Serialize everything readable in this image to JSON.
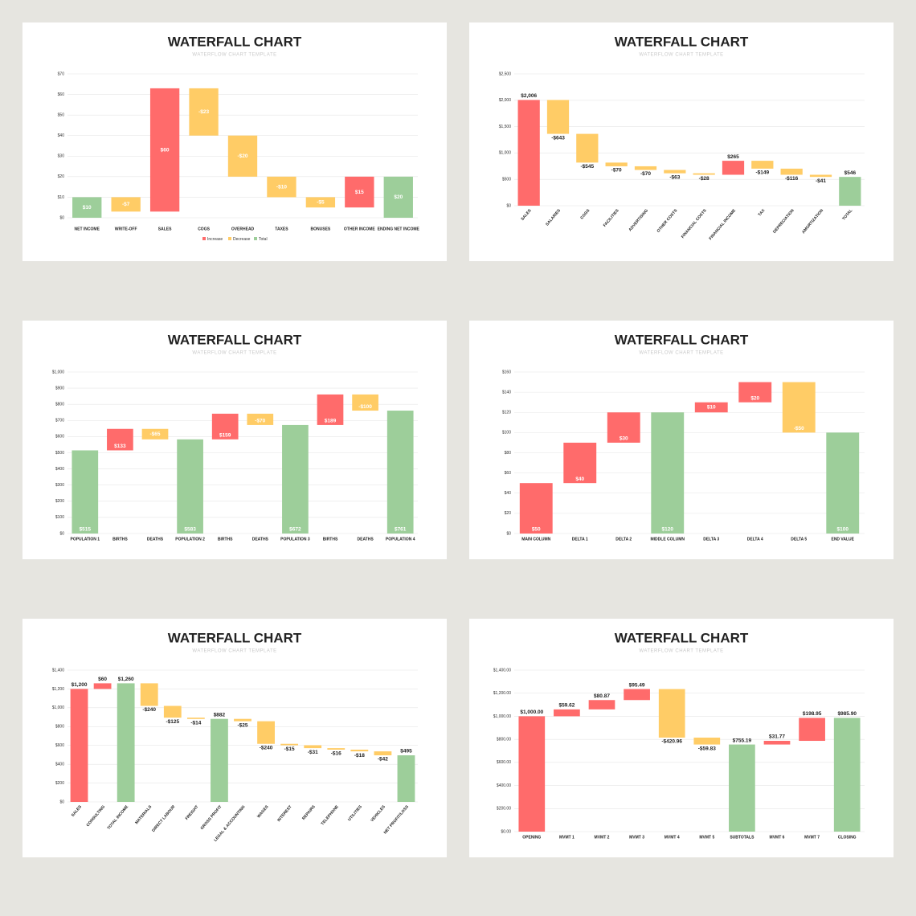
{
  "chart_data": [
    {
      "type": "waterfall",
      "title": "WATERFALL CHART",
      "subtitle": "WATERFLOW CHART TEMPLATE",
      "categories": [
        "NET INCOME",
        "WRITE-OFF",
        "SALES",
        "COGS",
        "OVERHEAD",
        "TAXES",
        "BONUSES",
        "OTHER INCOME",
        "ENDING NET INCOME"
      ],
      "values": [
        10,
        -7,
        60,
        -23,
        -20,
        -10,
        -5,
        15,
        20
      ],
      "value_labels": [
        "$10",
        "-$7",
        "$60",
        "-$23",
        "-$20",
        "-$10",
        "-$5",
        "$15",
        "$20"
      ],
      "kinds": [
        "total",
        "decrease",
        "increase",
        "decrease",
        "decrease",
        "decrease",
        "decrease",
        "increase",
        "total"
      ],
      "colors": {
        "increase": "#ff6b6b",
        "decrease": "#ffcc66",
        "total": "#9dce9a"
      },
      "label_position": "center",
      "rotate_labels": false,
      "legend": [
        {
          "kind": "increase",
          "name": "Increase"
        },
        {
          "kind": "decrease",
          "name": "Decrease"
        },
        {
          "kind": "total",
          "name": "Total"
        }
      ],
      "ylim": [
        0,
        70
      ],
      "yticks": [
        {
          "value": 0,
          "label": "$0"
        },
        {
          "value": 10,
          "label": "$10"
        },
        {
          "value": 20,
          "label": "$20"
        },
        {
          "value": 30,
          "label": "$30"
        },
        {
          "value": 40,
          "label": "$40"
        },
        {
          "value": 50,
          "label": "$50"
        },
        {
          "value": 60,
          "label": "$60"
        },
        {
          "value": 70,
          "label": "$70"
        }
      ],
      "grid": true
    },
    {
      "type": "waterfall",
      "title": "WATERFALL CHART",
      "subtitle": "WATERFLOW CHART TEMPLATE",
      "categories": [
        "SALES",
        "SALARIES",
        "COGS",
        "FACILITIES",
        "ADVERTISING",
        "OTHER COSTS",
        "FINANCIAL COSTS",
        "FINANCIAL INCOME",
        "TAX",
        "DEPRECIATION",
        "AMORTIZATION",
        "TOTAL"
      ],
      "values": [
        2006,
        -643,
        -545,
        -70,
        -70,
        -63,
        -28,
        265,
        -149,
        -116,
        -41,
        546
      ],
      "value_labels": [
        "$2,006",
        "-$643",
        "-$545",
        "-$70",
        "-$70",
        "-$63",
        "-$28",
        "$265",
        "-$149",
        "-$116",
        "-$41",
        "$546"
      ],
      "kinds": [
        "increase",
        "decrease",
        "decrease",
        "decrease",
        "decrease",
        "decrease",
        "decrease",
        "increase",
        "decrease",
        "decrease",
        "decrease",
        "total"
      ],
      "colors": {
        "increase": "#ff6b6b",
        "decrease": "#ffcc66",
        "total": "#9dce9a"
      },
      "label_position": "outside",
      "rotate_labels": true,
      "ylim": [
        0,
        2500
      ],
      "yticks": [
        {
          "value": 0,
          "label": "$0"
        },
        {
          "value": 500,
          "label": "$500"
        },
        {
          "value": 1000,
          "label": "$1,000"
        },
        {
          "value": 1500,
          "label": "$1,500"
        },
        {
          "value": 2000,
          "label": "$2,000"
        },
        {
          "value": 2500,
          "label": "$2,500"
        }
      ],
      "grid": true
    },
    {
      "type": "waterfall",
      "title": "WATERFALL CHART",
      "subtitle": "WATERFLOW CHART TEMPLATE",
      "categories": [
        "POPULATION 1",
        "BIRTHS",
        "DEATHS",
        "POPULATION 2",
        "BIRTHS",
        "DEATHS",
        "POPULATION 3",
        "BIRTHS",
        "DEATHS",
        "POPULATION 4"
      ],
      "values": [
        515,
        133,
        -65,
        583,
        159,
        -70,
        672,
        189,
        -100,
        761
      ],
      "value_labels": [
        "$515",
        "$133",
        "-$65",
        "$583",
        "$159",
        "-$70",
        "$672",
        "$189",
        "-$100",
        "$761"
      ],
      "kinds": [
        "total",
        "increase",
        "decrease",
        "total",
        "increase",
        "decrease",
        "total",
        "increase",
        "decrease",
        "total"
      ],
      "colors": {
        "increase": "#ff6b6b",
        "decrease": "#ffcc66",
        "total": "#9dce9a"
      },
      "label_position": "base",
      "rotate_labels": false,
      "ylim": [
        0,
        1000
      ],
      "yticks": [
        {
          "value": 0,
          "label": "$0"
        },
        {
          "value": 100,
          "label": "$100"
        },
        {
          "value": 200,
          "label": "$200"
        },
        {
          "value": 300,
          "label": "$300"
        },
        {
          "value": 400,
          "label": "$400"
        },
        {
          "value": 500,
          "label": "$500"
        },
        {
          "value": 600,
          "label": "$600"
        },
        {
          "value": 700,
          "label": "$700"
        },
        {
          "value": 800,
          "label": "$800"
        },
        {
          "value": 900,
          "label": "$900"
        },
        {
          "value": 1000,
          "label": "$1,000"
        }
      ],
      "grid": true
    },
    {
      "type": "waterfall",
      "title": "WATERFALL CHART",
      "subtitle": "WATERFLOW CHART TEMPLATE",
      "categories": [
        "MAIN COLUMN",
        "DELTA 1",
        "DELTA 2",
        "MIDDLE COLUMN",
        "DELTA 3",
        "DELTA 4",
        "DELTA 5",
        "END VALUE"
      ],
      "values": [
        50,
        40,
        30,
        120,
        10,
        20,
        -50,
        100
      ],
      "value_labels": [
        "$50",
        "$40",
        "$30",
        "$120",
        "$10",
        "$20",
        "-$50",
        "$100"
      ],
      "kinds": [
        "increase",
        "increase",
        "increase",
        "total",
        "increase",
        "increase",
        "decrease",
        "total"
      ],
      "colors": {
        "increase": "#ff6b6b",
        "decrease": "#ffcc66",
        "total": "#9dce9a"
      },
      "label_position": "base",
      "rotate_labels": false,
      "ylim": [
        0,
        160
      ],
      "yticks": [
        {
          "value": 0,
          "label": "$0"
        },
        {
          "value": 20,
          "label": "$20"
        },
        {
          "value": 40,
          "label": "$40"
        },
        {
          "value": 60,
          "label": "$60"
        },
        {
          "value": 80,
          "label": "$80"
        },
        {
          "value": 100,
          "label": "$100"
        },
        {
          "value": 120,
          "label": "$120"
        },
        {
          "value": 140,
          "label": "$140"
        },
        {
          "value": 160,
          "label": "$160"
        }
      ],
      "grid": true
    },
    {
      "type": "waterfall",
      "title": "WATERFALL CHART",
      "subtitle": "WATERFLOW CHART TEMPLATE",
      "categories": [
        "SALES",
        "CONSULTING",
        "TOTAL INCOME",
        "MATERIALS",
        "DIRECT LABOUR",
        "FREIGHT",
        "GROSS PROFIT",
        "LEGAL & ACCOUNTING",
        "WAGES",
        "INTEREST",
        "REPAIRS",
        "TELEPHONE",
        "UTILITIES",
        "VEHICLES",
        "NET PROFIT/LOSS"
      ],
      "values": [
        1200,
        60,
        1260,
        -240,
        -125,
        -14,
        882,
        -25,
        -240,
        -15,
        -31,
        -16,
        -18,
        -42,
        495
      ],
      "value_labels": [
        "$1,200",
        "$60",
        "$1,260",
        "-$240",
        "-$125",
        "-$14",
        "$882",
        "-$25",
        "-$240",
        "-$15",
        "-$31",
        "-$16",
        "-$18",
        "-$42",
        "$495"
      ],
      "kinds": [
        "increase",
        "increase",
        "total",
        "decrease",
        "decrease",
        "decrease",
        "total",
        "decrease",
        "decrease",
        "decrease",
        "decrease",
        "decrease",
        "decrease",
        "decrease",
        "total"
      ],
      "colors": {
        "increase": "#ff6b6b",
        "decrease": "#ffcc66",
        "total": "#9dce9a"
      },
      "label_position": "outside",
      "rotate_labels": true,
      "ylim": [
        0,
        1400
      ],
      "yticks": [
        {
          "value": 0,
          "label": "$0"
        },
        {
          "value": 200,
          "label": "$200"
        },
        {
          "value": 400,
          "label": "$400"
        },
        {
          "value": 600,
          "label": "$600"
        },
        {
          "value": 800,
          "label": "$800"
        },
        {
          "value": 1000,
          "label": "$1,000"
        },
        {
          "value": 1200,
          "label": "$1,200"
        },
        {
          "value": 1400,
          "label": "$1,400"
        }
      ],
      "grid": true
    },
    {
      "type": "waterfall",
      "title": "WATERFALL CHART",
      "subtitle": "WATERFLOW CHART TEMPLATE",
      "categories": [
        "OPENING",
        "MVMT 1",
        "MVMT 2",
        "MVMT 3",
        "MVMT 4",
        "MVMT 5",
        "SUBTOTALS",
        "MVMT 6",
        "MVMT 7",
        "CLOSING"
      ],
      "values": [
        1000.0,
        59.62,
        80.87,
        95.49,
        -420.96,
        -59.83,
        755.19,
        31.77,
        198.95,
        985.9
      ],
      "value_labels": [
        "$1,000.00",
        "$59.62",
        "$80.87",
        "$95.49",
        "-$420.96",
        "-$59.83",
        "$755.19",
        "$31.77",
        "$198.95",
        "$985.90"
      ],
      "kinds": [
        "increase",
        "increase",
        "increase",
        "increase",
        "decrease",
        "decrease",
        "total",
        "increase",
        "increase",
        "total"
      ],
      "colors": {
        "increase": "#ff6b6b",
        "decrease": "#ffcc66",
        "total": "#9dce9a"
      },
      "label_position": "outside",
      "rotate_labels": false,
      "ylim": [
        0,
        1400
      ],
      "yticks": [
        {
          "value": 0,
          "label": "$0.00"
        },
        {
          "value": 200,
          "label": "$200.00"
        },
        {
          "value": 400,
          "label": "$400.00"
        },
        {
          "value": 600,
          "label": "$600.00"
        },
        {
          "value": 800,
          "label": "$800.00"
        },
        {
          "value": 1000,
          "label": "$1,000.00"
        },
        {
          "value": 1200,
          "label": "$1,200.00"
        },
        {
          "value": 1400,
          "label": "$1,400.00"
        }
      ],
      "grid": true
    }
  ]
}
